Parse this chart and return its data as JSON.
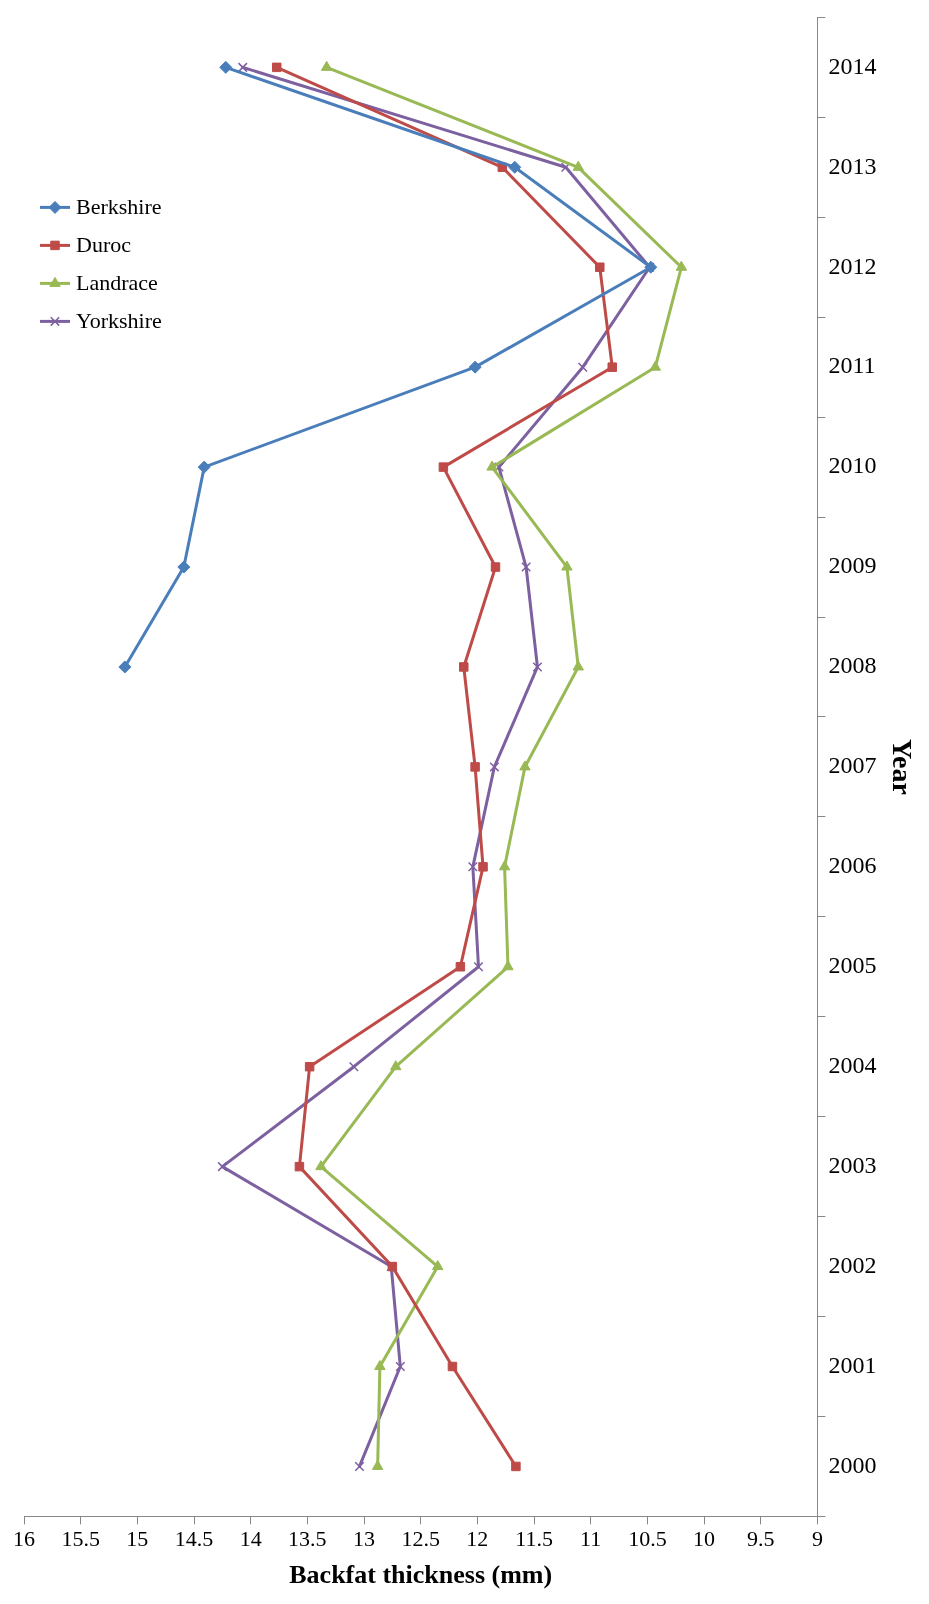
{
  "chart_data": {
    "type": "line",
    "orientation": "horizontal",
    "xlabel": "Backfat thickness (mm)",
    "ylabel": "Year",
    "categories": [
      "2014",
      "2013",
      "2012",
      "2011",
      "2010",
      "2009",
      "2008",
      "2007",
      "2006",
      "2005",
      "2004",
      "2003",
      "2002",
      "2001",
      "2000"
    ],
    "series": [
      {
        "name": "Berkshire",
        "color": "#4a7ebb",
        "marker": "diamond",
        "values": [
          14.22,
          11.67,
          10.47,
          12.02,
          14.41,
          14.59,
          15.11,
          null,
          null,
          null,
          null,
          null,
          null,
          null,
          null
        ]
      },
      {
        "name": "Duroc",
        "color": "#be4b48",
        "marker": "square",
        "values": [
          13.77,
          11.78,
          10.92,
          10.81,
          12.3,
          11.84,
          12.12,
          12.02,
          11.95,
          12.15,
          13.48,
          13.57,
          12.75,
          12.22,
          11.66
        ]
      },
      {
        "name": "Landrace",
        "color": "#98b954",
        "marker": "triangle",
        "values": [
          13.33,
          11.11,
          10.2,
          10.43,
          11.87,
          11.21,
          11.11,
          11.58,
          11.76,
          11.73,
          12.72,
          13.38,
          12.35,
          12.86,
          12.88
        ]
      },
      {
        "name": "Yorkshire",
        "color": "#7d60a0",
        "marker": "cross",
        "values": [
          14.07,
          11.22,
          10.48,
          11.07,
          11.81,
          11.57,
          11.47,
          11.85,
          12.04,
          11.99,
          13.09,
          14.25,
          12.76,
          12.68,
          13.04
        ]
      }
    ],
    "xlim": [
      16,
      9
    ],
    "xticks": [
      16,
      15.5,
      15,
      14.5,
      14,
      13.5,
      13,
      12.5,
      12,
      11.5,
      11,
      10.5,
      10,
      9.5,
      9
    ],
    "grid": false,
    "legend": "top left",
    "line_style": "solid"
  }
}
